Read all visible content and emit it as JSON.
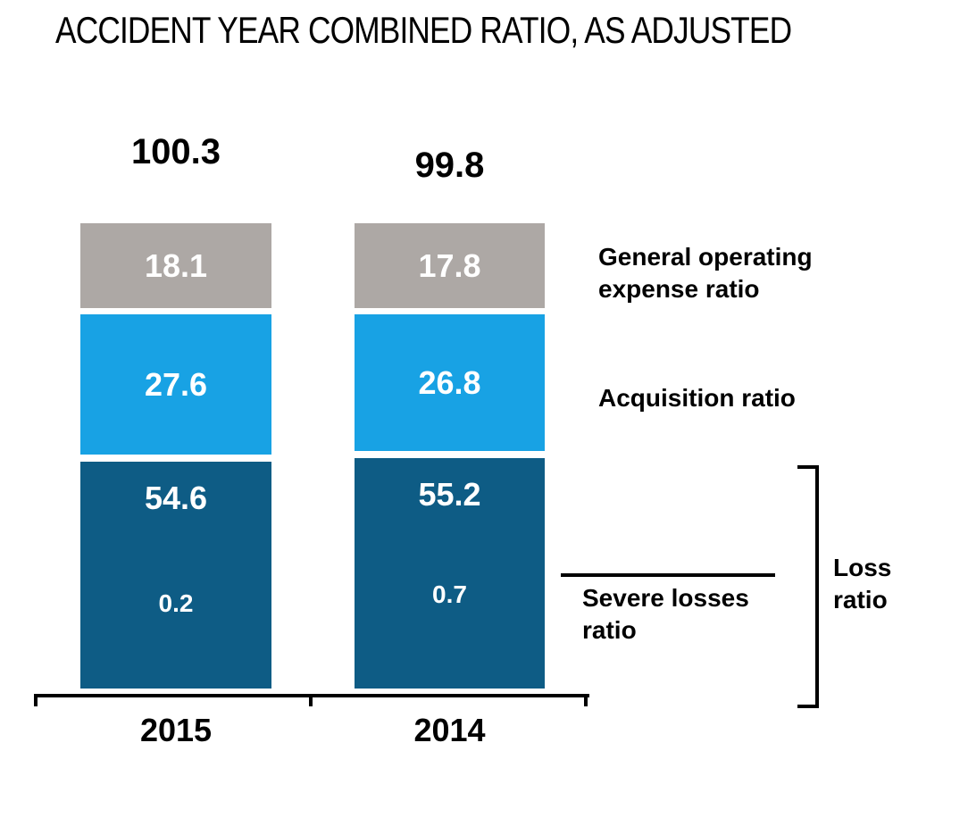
{
  "title": "ACCIDENT YEAR COMBINED RATIO, AS ADJUSTED",
  "chart_data": {
    "type": "bar",
    "subtype": "stacked",
    "title": "ACCIDENT YEAR COMBINED RATIO, AS ADJUSTED",
    "categories": [
      "2015",
      "2014"
    ],
    "totals": [
      "100.3",
      "99.8"
    ],
    "series": [
      {
        "name": "General operating expense ratio",
        "color": "#ada8a5",
        "label_color": "#ffffff",
        "values": [
          "18.1",
          "17.8"
        ]
      },
      {
        "name": "Acquisition ratio",
        "color": "#18a2e4",
        "label_color": "#ffffff",
        "values": [
          "27.6",
          "26.8"
        ]
      },
      {
        "name": "Loss ratio",
        "color": "#0e5c85",
        "label_color": "#ffffff",
        "values": [
          "54.6",
          "55.2"
        ]
      },
      {
        "name": "Severe losses ratio",
        "color": "#0e5c85",
        "label_color": "#ffffff",
        "values": [
          "0.2",
          "0.7"
        ]
      }
    ],
    "legend": {
      "position": "right",
      "general_operating": "General operating expense ratio",
      "acquisition": "Acquisition ratio",
      "severe_losses": "Severe losses ratio",
      "loss": "Loss ratio"
    },
    "layout": {
      "gridlines": false,
      "baseline_axis": true,
      "value_labels": "inside-white-bold"
    },
    "colors": {
      "background": "#ffffff",
      "text": "#000000",
      "general_operating_expense": "#ada8a5",
      "acquisition": "#18a2e4",
      "loss": "#0e5c85"
    }
  }
}
